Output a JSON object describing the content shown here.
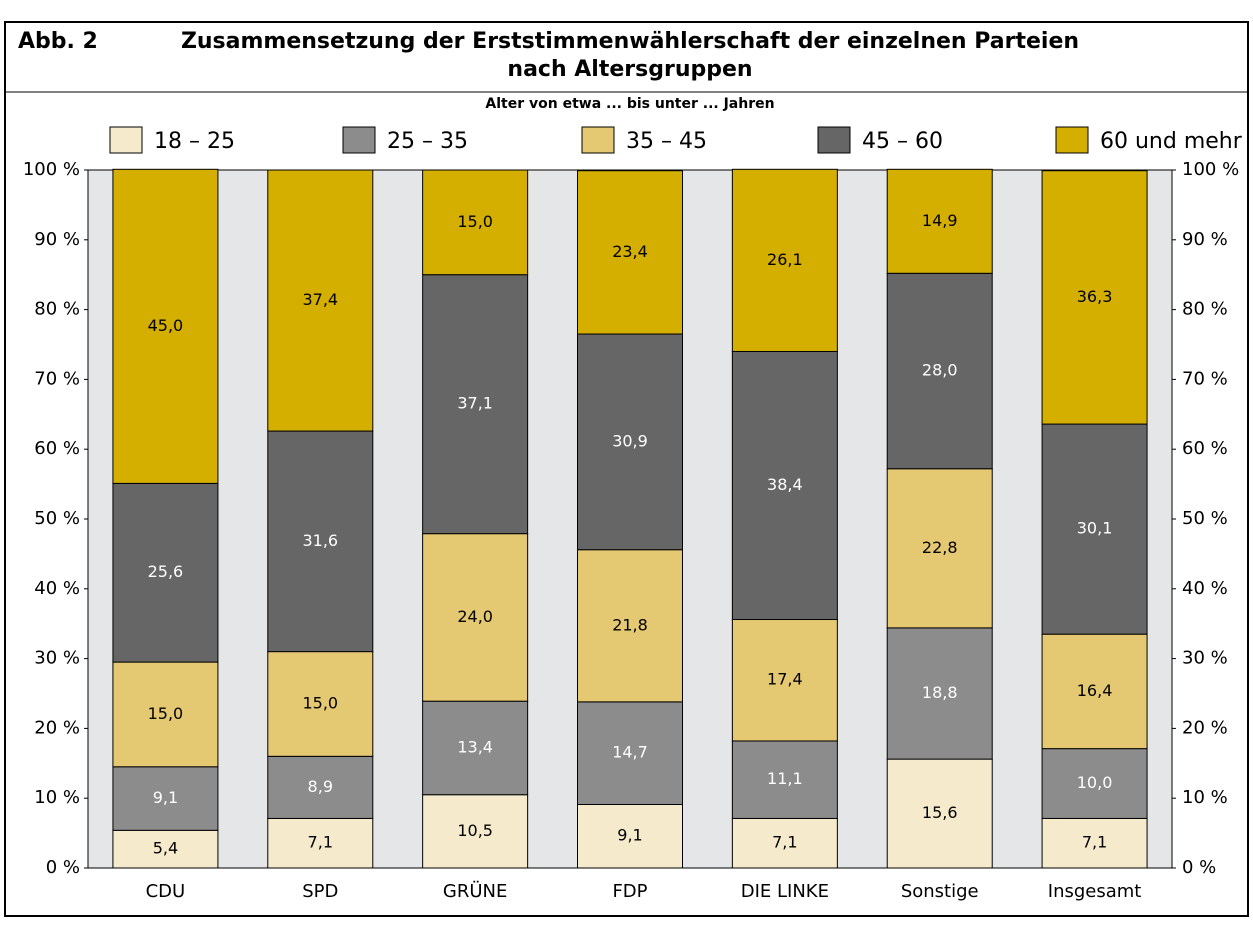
{
  "chart_data": {
    "type": "stacked_bar",
    "figure_label": "Abb. 2",
    "title": "Zusammensetzung der Erststimmenwählerschaft der einzelnen Parteien",
    "title_line2": "nach Altersgruppen",
    "legend_title": "Alter von etwa ... bis unter ... Jahren",
    "categories": [
      "CDU",
      "SPD",
      "GRÜNE",
      "FDP",
      "DIE LINKE",
      "Sonstige",
      "Insgesamt"
    ],
    "series": [
      {
        "name": "18 – 25",
        "color": "#f5ebcc",
        "values": [
          5.4,
          7.1,
          10.5,
          9.1,
          7.1,
          15.6,
          7.1
        ],
        "value_labels": [
          "5,4",
          "7,1",
          "10,5",
          "9,1",
          "7,1",
          "15,6",
          "7,1"
        ]
      },
      {
        "name": "25 – 35",
        "color": "#8c8c8c",
        "values": [
          9.1,
          8.9,
          13.4,
          14.7,
          11.1,
          18.8,
          10.0
        ],
        "value_labels": [
          "9,1",
          "8,9",
          "13,4",
          "14,7",
          "11,1",
          "18,8",
          "10,0"
        ]
      },
      {
        "name": "35 – 45",
        "color": "#e5c872",
        "values": [
          15.0,
          15.0,
          24.0,
          21.8,
          17.4,
          22.8,
          16.4
        ],
        "value_labels": [
          "15,0",
          "15,0",
          "24,0",
          "21,8",
          "17,4",
          "22,8",
          "16,4"
        ]
      },
      {
        "name": "45 – 60",
        "color": "#666666",
        "values": [
          25.6,
          31.6,
          37.1,
          30.9,
          38.4,
          28.0,
          30.1
        ],
        "value_labels": [
          "25,6",
          "31,6",
          "37,1",
          "30,9",
          "38,4",
          "28,0",
          "30,1"
        ]
      },
      {
        "name": "60 und mehr",
        "color": "#d4af00",
        "values": [
          45.0,
          37.4,
          15.0,
          23.4,
          26.1,
          14.9,
          36.3
        ],
        "value_labels": [
          "45,0",
          "37,4",
          "15,0",
          "23,4",
          "26,1",
          "14,9",
          "36,3"
        ]
      }
    ],
    "ylim": [
      0,
      100
    ],
    "yticks": [
      {
        "value": 0,
        "label": "0 %"
      },
      {
        "value": 10,
        "label": "10 %"
      },
      {
        "value": 20,
        "label": "20 %"
      },
      {
        "value": 30,
        "label": "30 %"
      },
      {
        "value": 40,
        "label": "40 %"
      },
      {
        "value": 50,
        "label": "50 %"
      },
      {
        "value": 60,
        "label": "60 %"
      },
      {
        "value": 70,
        "label": "70 %"
      },
      {
        "value": 80,
        "label": "80 %"
      },
      {
        "value": 90,
        "label": "90 %"
      },
      {
        "value": 100,
        "label": "100 %"
      }
    ],
    "legend_position": "top"
  }
}
